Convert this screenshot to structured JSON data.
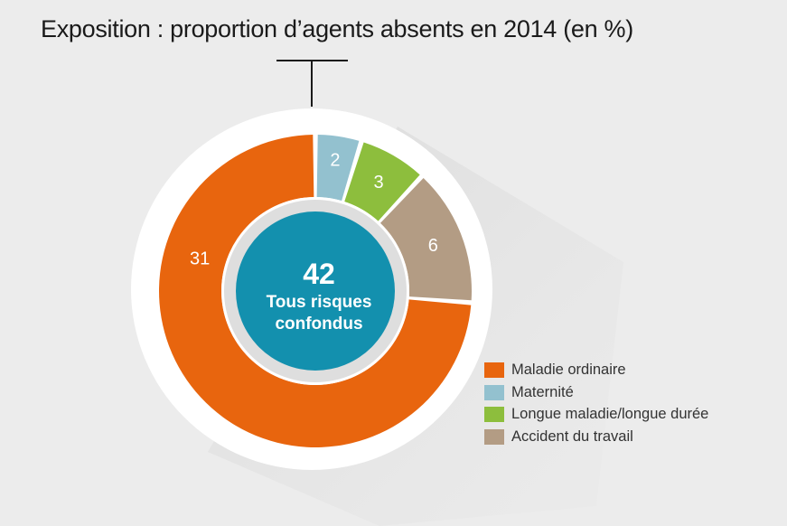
{
  "title": "Exposition : proportion d’agents absents en 2014 (en %)",
  "chart_data": {
    "type": "pie",
    "variant": "donut",
    "total": {
      "value": "42",
      "label": "Tous risques confondus"
    },
    "categories": [
      "Maladie ordinaire",
      "Maternité",
      "Longue maladie/longue durée",
      "Accident du travail"
    ],
    "values": [
      31,
      2,
      3,
      6
    ],
    "value_labels": [
      "31",
      "2",
      "3",
      "6"
    ],
    "colors": [
      "#e8650e",
      "#93c1cf",
      "#8dbe3d",
      "#b39c84"
    ],
    "center_color": "#1390ae",
    "legend_position": "bottom-right"
  }
}
